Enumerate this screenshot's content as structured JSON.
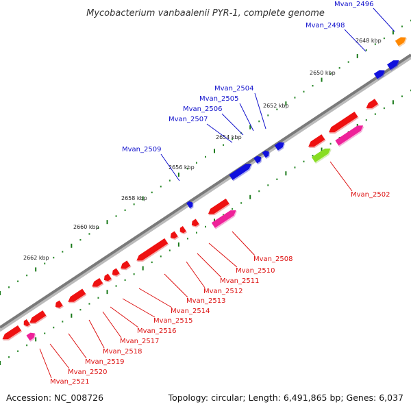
{
  "title": "Mycobacterium vanbaalenii PYR-1, complete genome",
  "footer": {
    "accession": "Accession: NC_008726",
    "summary": "Topology: circular; Length: 6,491,865 bp; Genes: 6,037"
  },
  "colors": {
    "backbone": "#7a7a7a",
    "tick_dot": "#2e8b2e",
    "tick_major": "#1a7a1a",
    "strand_top_gene": "#1010dd",
    "strand_bottom_gene": "#ee1111",
    "rna_gene": "#ee2299",
    "misc_gene": "#88dd22",
    "orange_gene": "#ff8800",
    "label_top": "#1010cc",
    "label_bottom": "#dd1111"
  },
  "scale_labels": [
    "2648 kbp",
    "2650 kbp",
    "2652 kbp",
    "2654 kbp",
    "2656 kbp",
    "2658 kbp",
    "2660 kbp",
    "2662 kbp"
  ],
  "top_labels": [
    "Mvan_2496",
    "Mvan_2498",
    "Mvan_2504",
    "Mvan_2505",
    "Mvan_2506",
    "Mvan_2507",
    "Mvan_2509"
  ],
  "bottom_labels": [
    "Mvan_2502",
    "Mvan_2508",
    "Mvan_2510",
    "Mvan_2511",
    "Mvan_2512",
    "Mvan_2513",
    "Mvan_2514",
    "Mvan_2515",
    "Mvan_2516",
    "Mvan_2517",
    "Mvan_2518",
    "Mvan_2519",
    "Mvan_2520",
    "Mvan_2521"
  ]
}
